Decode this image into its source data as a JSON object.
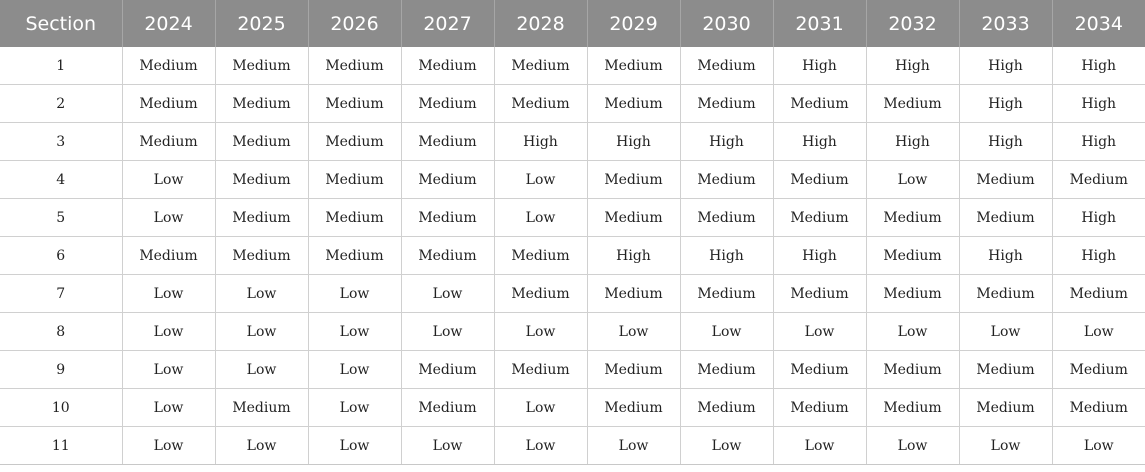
{
  "table": {
    "headers": [
      "Section",
      "2024",
      "2025",
      "2026",
      "2027",
      "2028",
      "2029",
      "2030",
      "2031",
      "2032",
      "2033",
      "2034"
    ],
    "rows": [
      [
        "1",
        "Medium",
        "Medium",
        "Medium",
        "Medium",
        "Medium",
        "Medium",
        "Medium",
        "High",
        "High",
        "High",
        "High"
      ],
      [
        "2",
        "Medium",
        "Medium",
        "Medium",
        "Medium",
        "Medium",
        "Medium",
        "Medium",
        "Medium",
        "Medium",
        "High",
        "High"
      ],
      [
        "3",
        "Medium",
        "Medium",
        "Medium",
        "Medium",
        "High",
        "High",
        "High",
        "High",
        "High",
        "High",
        "High"
      ],
      [
        "4",
        "Low",
        "Medium",
        "Medium",
        "Medium",
        "Low",
        "Medium",
        "Medium",
        "Medium",
        "Low",
        "Medium",
        "Medium"
      ],
      [
        "5",
        "Low",
        "Medium",
        "Medium",
        "Medium",
        "Low",
        "Medium",
        "Medium",
        "Medium",
        "Medium",
        "Medium",
        "High"
      ],
      [
        "6",
        "Medium",
        "Medium",
        "Medium",
        "Medium",
        "Medium",
        "High",
        "High",
        "High",
        "Medium",
        "High",
        "High"
      ],
      [
        "7",
        "Low",
        "Low",
        "Low",
        "Low",
        "Medium",
        "Medium",
        "Medium",
        "Medium",
        "Medium",
        "Medium",
        "Medium"
      ],
      [
        "8",
        "Low",
        "Low",
        "Low",
        "Low",
        "Low",
        "Low",
        "Low",
        "Low",
        "Low",
        "Low",
        "Low"
      ],
      [
        "9",
        "Low",
        "Low",
        "Low",
        "Medium",
        "Medium",
        "Medium",
        "Medium",
        "Medium",
        "Medium",
        "Medium",
        "Medium"
      ],
      [
        "10",
        "Low",
        "Medium",
        "Low",
        "Medium",
        "Low",
        "Medium",
        "Medium",
        "Medium",
        "Medium",
        "Medium",
        "Medium"
      ],
      [
        "11",
        "Low",
        "Low",
        "Low",
        "Low",
        "Low",
        "Low",
        "Low",
        "Low",
        "Low",
        "Low",
        "Low"
      ]
    ]
  },
  "colors": {
    "header_background": "#8c8c8c",
    "header_text": "#ffffff",
    "grid_line": "#d0d0d0"
  }
}
